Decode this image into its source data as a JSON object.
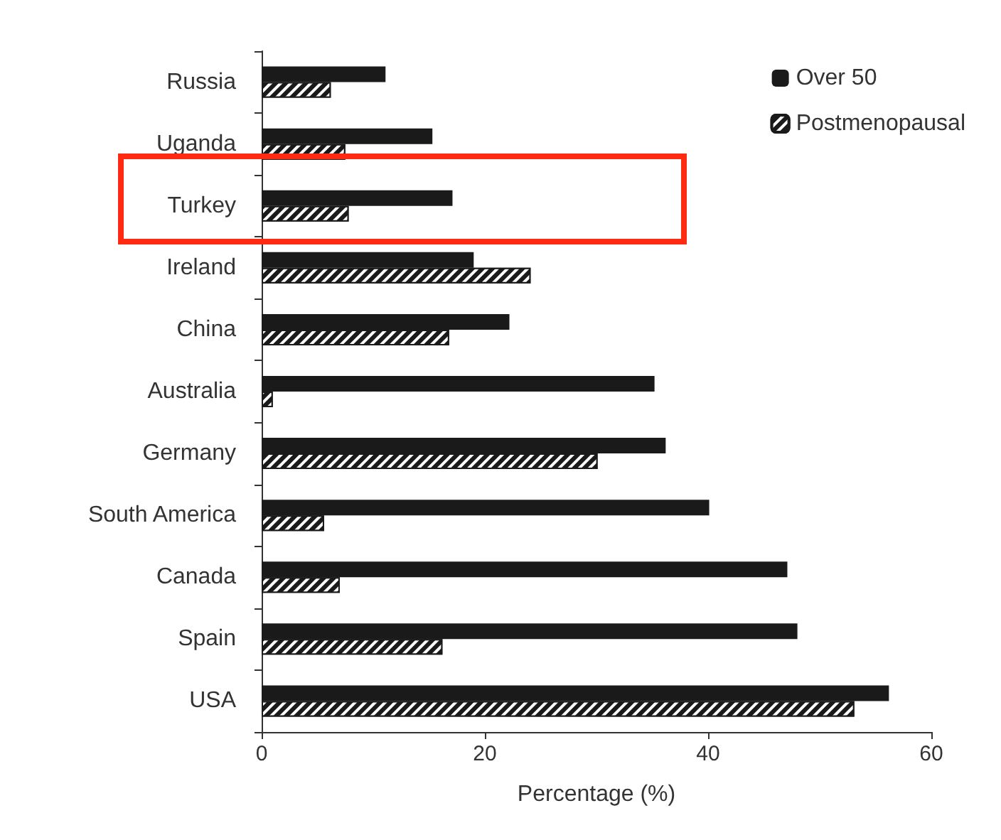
{
  "chart_data": {
    "type": "bar",
    "orientation": "horizontal",
    "xlabel": "Percentage (%)",
    "categories": [
      "Russia",
      "Uganda",
      "Turkey",
      "Ireland",
      "China",
      "Australia",
      "Germany",
      "South America",
      "Canada",
      "Spain",
      "USA"
    ],
    "series": [
      {
        "name": "Over 50",
        "color": "#1a1a1a",
        "values": [
          11.1,
          15.3,
          17.1,
          19.0,
          22.2,
          35.2,
          36.2,
          40.1,
          47.1,
          48.0,
          56.2
        ]
      },
      {
        "name": "Postmenopausal",
        "color": "#1a1a1a",
        "values": [
          6.2,
          7.5,
          7.8,
          24.1,
          16.8,
          1.0,
          30.1,
          5.6,
          7.0,
          16.2,
          53.1
        ]
      }
    ],
    "xlim": [
      0,
      60
    ],
    "xticks": [
      0,
      20,
      40,
      60
    ],
    "grid": false,
    "legend": "top right"
  }
}
